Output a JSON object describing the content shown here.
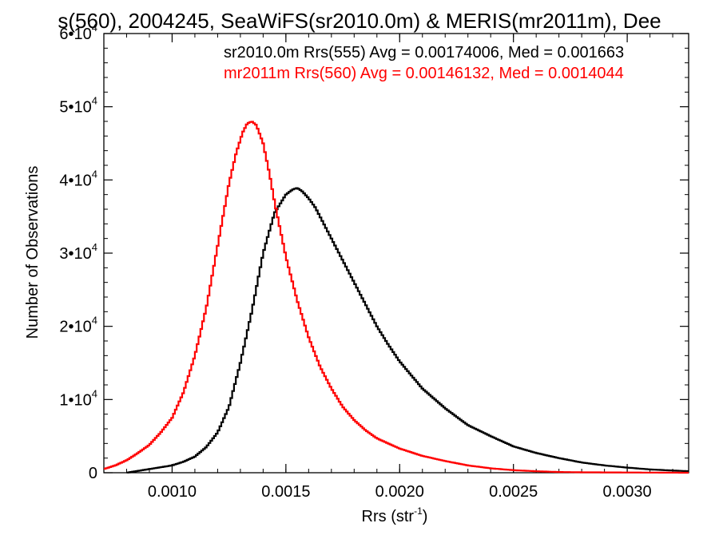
{
  "chart_data": {
    "type": "line",
    "title": "s(560), 2004245, SeaWiFS(sr2010.0m) & MERIS(mr2011m), Dee",
    "xlabel": "Rrs (str",
    "xlabel_sup": "-1",
    "xlabel_end": ")",
    "ylabel": "Number of Observations",
    "xlim": [
      0.0007,
      0.00327
    ],
    "ylim": [
      0,
      60000
    ],
    "x_ticks": [
      {
        "value": 0.001,
        "label": "0.0010"
      },
      {
        "value": 0.0015,
        "label": "0.0015"
      },
      {
        "value": 0.002,
        "label": "0.0020"
      },
      {
        "value": 0.0025,
        "label": "0.0025"
      },
      {
        "value": 0.003,
        "label": "0.0030"
      }
    ],
    "y_ticks": [
      {
        "value": 0,
        "mant": "0",
        "exp": ""
      },
      {
        "value": 10000,
        "mant": "1•10",
        "exp": "4"
      },
      {
        "value": 20000,
        "mant": "2•10",
        "exp": "4"
      },
      {
        "value": 30000,
        "mant": "3•10",
        "exp": "4"
      },
      {
        "value": 40000,
        "mant": "4•10",
        "exp": "4"
      },
      {
        "value": 50000,
        "mant": "5•10",
        "exp": "4"
      },
      {
        "value": 60000,
        "mant": "6•10",
        "exp": "4"
      }
    ],
    "grid": false,
    "legend_position": "top-right",
    "series": [
      {
        "name": "sr2010.0m Rrs(555) Avg = 0.00174006, Med = 0.001663",
        "color": "#000000",
        "x": [
          0.0008,
          0.0009,
          0.001,
          0.00105,
          0.0011,
          0.00115,
          0.0012,
          0.00125,
          0.0013,
          0.00135,
          0.0014,
          0.00145,
          0.0015,
          0.00153,
          0.00155,
          0.00157,
          0.0016,
          0.00163,
          0.00165,
          0.0017,
          0.00175,
          0.0018,
          0.00185,
          0.0019,
          0.00195,
          0.002,
          0.0021,
          0.0022,
          0.0023,
          0.0024,
          0.0025,
          0.0026,
          0.0027,
          0.0028,
          0.0029,
          0.003,
          0.0031,
          0.0032,
          0.00327
        ],
        "y": [
          0,
          500,
          1000,
          1500,
          2200,
          3500,
          5500,
          9000,
          15000,
          22000,
          30000,
          35500,
          38000,
          38700,
          38900,
          38500,
          37500,
          36200,
          35000,
          32000,
          29000,
          26000,
          23000,
          20000,
          17500,
          15200,
          11500,
          8800,
          6500,
          5000,
          3600,
          2700,
          2000,
          1400,
          1000,
          700,
          450,
          300,
          200
        ]
      },
      {
        "name": "mr2011m Rrs(560) Avg = 0.00146132, Med = 0.0014044",
        "color": "#ff0000",
        "x": [
          0.0007,
          0.00075,
          0.0008,
          0.00085,
          0.0009,
          0.00095,
          0.001,
          0.00105,
          0.0011,
          0.00115,
          0.0012,
          0.00125,
          0.00128,
          0.00131,
          0.00133,
          0.00135,
          0.00137,
          0.0014,
          0.00143,
          0.00145,
          0.0015,
          0.00155,
          0.0016,
          0.00165,
          0.0017,
          0.00175,
          0.0018,
          0.00185,
          0.0019,
          0.002,
          0.0021,
          0.0022,
          0.0023,
          0.0024,
          0.0025,
          0.0026,
          0.0027,
          0.0028,
          0.00327
        ],
        "y": [
          500,
          1000,
          1700,
          2700,
          3800,
          5500,
          7500,
          11000,
          16000,
          22500,
          31000,
          39500,
          43500,
          46500,
          47700,
          48000,
          47500,
          45000,
          40500,
          37000,
          29500,
          23500,
          18500,
          14500,
          11500,
          9000,
          7200,
          5800,
          4700,
          3300,
          2300,
          1600,
          1000,
          600,
          350,
          200,
          100,
          60,
          0
        ]
      }
    ]
  }
}
